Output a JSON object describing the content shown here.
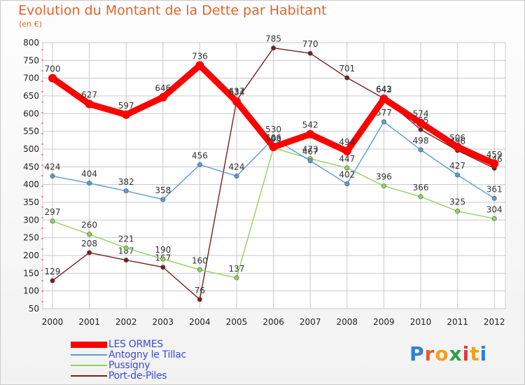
{
  "title": "Evolution du Montant de la Dette par Habitant",
  "unit_label": "(en €)",
  "logo_text": "Proxiti",
  "colors": {
    "title": "#e2632a",
    "legend_text": "#3a48e0",
    "grid": "#c8c8c8",
    "axis_text": "#222222"
  },
  "chart_data": {
    "type": "line",
    "title": "Evolution du Montant de la Dette par Habitant",
    "ylabel": "(en €)",
    "ylim": [
      50,
      800
    ],
    "yticks": [
      50,
      100,
      150,
      200,
      250,
      300,
      350,
      400,
      450,
      500,
      550,
      600,
      650,
      700,
      750,
      800
    ],
    "grid": true,
    "legend_position": "bottom-left",
    "x": [
      "2000",
      "2001",
      "2002",
      "2003",
      "2004",
      "2005",
      "2006",
      "2007",
      "2008",
      "2009",
      "2010",
      "2011",
      "2012"
    ],
    "series": [
      {
        "name": "LES ORMES",
        "color": "#ff0000",
        "values": [
          700,
          627,
          597,
          646,
          736,
          634,
          506,
          542,
          494,
          642,
          574,
          506,
          459
        ]
      },
      {
        "name": "Antogny le Tillac",
        "color": "#5b9bd5",
        "values": [
          424,
          404,
          382,
          358,
          456,
          424,
          530,
          467,
          402,
          577,
          498,
          427,
          361
        ]
      },
      {
        "name": "Pussigny",
        "color": "#8ed35a",
        "values": [
          297,
          260,
          221,
          190,
          160,
          137,
          503,
          473,
          447,
          396,
          366,
          325,
          304
        ]
      },
      {
        "name": "Port-de-Piles",
        "color": "#7b1f1f",
        "values": [
          129,
          208,
          187,
          167,
          76,
          637,
          785,
          770,
          701,
          643,
          555,
          496,
          446
        ]
      }
    ]
  }
}
